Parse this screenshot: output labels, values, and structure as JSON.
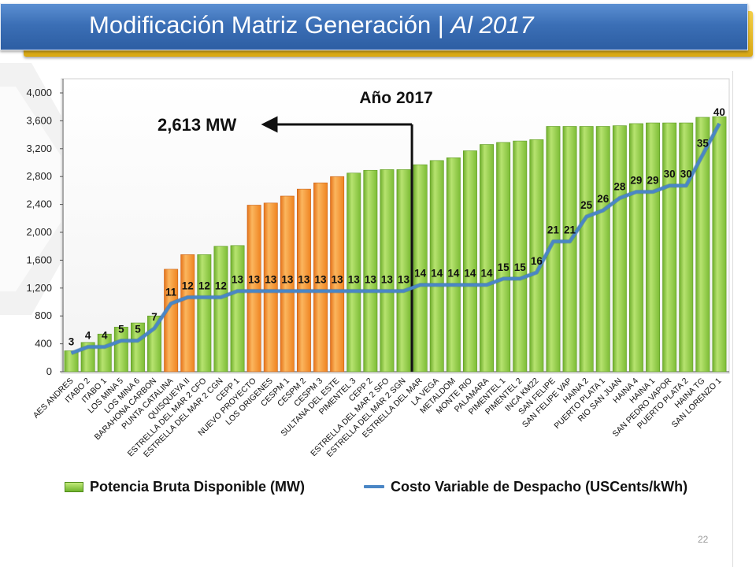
{
  "slide": {
    "title_main": "Modificación Matriz Generación | ",
    "title_italic": "Al 2017",
    "page_number": "22"
  },
  "annotation": {
    "label": "2,613 MW",
    "value": 2613
  },
  "colors": {
    "green": "#8cc63f",
    "orange": "#f7941d",
    "line": "#4a86c5",
    "title_blue": "#3b6fb6",
    "title_gold": "#e5b82a"
  },
  "legend": {
    "bar_label": "Potencia Bruta Disponible (MW)",
    "line_label": "Costo Variable de Despacho (USCents/kWh)"
  },
  "chart_data": {
    "type": "bar",
    "title": "Año 2017",
    "xlabel": "",
    "ylabel": "",
    "ylim": [
      0,
      4000
    ],
    "yticks": [
      0,
      400,
      800,
      1200,
      1600,
      2000,
      2400,
      2800,
      3200,
      3600,
      4000
    ],
    "ytick_labels": [
      "0",
      "400",
      "800",
      "1,200",
      "1,600",
      "2,000",
      "2,400",
      "2,800",
      "3,200",
      "3,600",
      "4,000"
    ],
    "grid": false,
    "legend_position": "bottom",
    "categories": [
      "AES ANDRES",
      "ITABO 2",
      "ITABO 1",
      "LOS MINA 5",
      "LOS MINA 6",
      "BARAHONA CARBON",
      "PUNTA CATALINA",
      "QUISQUEYA II",
      "ESTRELLA DEL MAR 2 CFO",
      "ESTRELLA DEL MAR 2 CGN",
      "CEPP 1",
      "NUEVO PROYECTO",
      "LOS ORIGENES",
      "CESPM 1",
      "CESPM 2",
      "CESPM 3",
      "SULTANA DEL ESTE",
      "PIMENTEL 3",
      "CEPP 2",
      "ESTRELLA DEL MAR 2 SFO",
      "ESTRELLA DEL MAR 2 SGN",
      "ESTRELLA DEL MAR",
      "LA VEGA",
      "METALDOM",
      "MONTE RIO",
      "PALAMARA",
      "PIMENTEL 1",
      "PIMENTEL 2",
      "INCA KM22",
      "SAN FELIPE",
      "SAN FELIPE VAP",
      "HAINA 2",
      "PUERTO PLATA 1",
      "RIO SAN JUAN",
      "HAINA 4",
      "HAINA 1",
      "SAN PEDRO VAPOR",
      "PUERTO PLATA 2",
      "HAINA TG",
      "SAN LORENZO 1"
    ],
    "series": [
      {
        "name": "Potencia Bruta Disponible (MW)",
        "type": "bar",
        "values": [
          300,
          420,
          540,
          640,
          700,
          800,
          1470,
          1680,
          1680,
          1800,
          1810,
          2390,
          2420,
          2520,
          2620,
          2710,
          2800,
          2850,
          2890,
          2900,
          2900,
          2970,
          3030,
          3070,
          3170,
          3260,
          3290,
          3310,
          3330,
          3520,
          3520,
          3520,
          3520,
          3530,
          3560,
          3570,
          3570,
          3570,
          3650,
          3660
        ],
        "highlight": [
          false,
          false,
          false,
          false,
          false,
          false,
          true,
          true,
          false,
          false,
          false,
          true,
          true,
          true,
          true,
          true,
          true,
          false,
          false,
          false,
          false,
          false,
          false,
          false,
          false,
          false,
          false,
          false,
          false,
          false,
          false,
          false,
          false,
          false,
          false,
          false,
          false,
          false,
          false,
          false
        ]
      },
      {
        "name": "Costo Variable de Despacho (USCents/kWh)",
        "type": "line",
        "values": [
          3,
          4,
          4,
          5,
          5,
          7,
          11,
          12,
          12,
          12,
          13,
          13,
          13,
          13,
          13,
          13,
          13,
          13,
          13,
          13,
          13,
          14,
          14,
          14,
          14,
          14,
          15,
          15,
          16,
          21,
          21,
          25,
          26,
          28,
          29,
          29,
          30,
          30,
          35,
          40
        ],
        "labels": [
          "3",
          "4",
          "4",
          "5",
          "5",
          "7",
          "11",
          "12",
          "12",
          "12",
          "13",
          "13",
          "13",
          "13",
          "13",
          "13",
          "13",
          "13",
          "13",
          "13",
          "13",
          "14",
          "14",
          "14",
          "14",
          "14",
          "15",
          "15",
          "16",
          "21",
          "21",
          "25",
          "26",
          "28",
          "29",
          "29",
          "30",
          "30",
          "35",
          "40"
        ]
      }
    ]
  }
}
